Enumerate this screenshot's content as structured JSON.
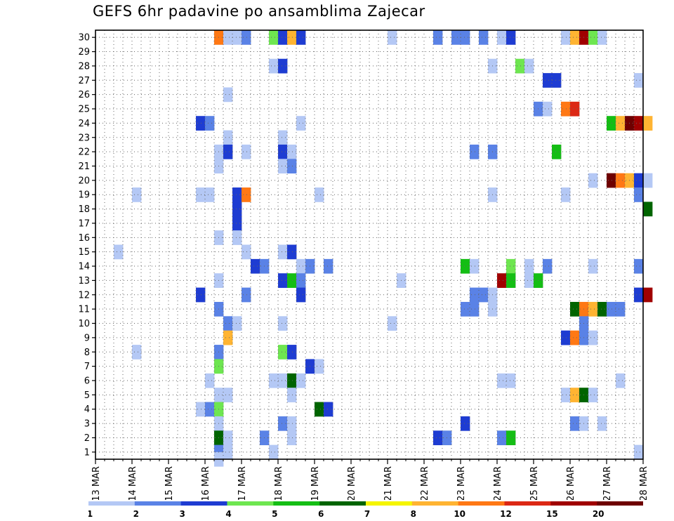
{
  "title": "GEFS 6hr padavine po ansamblima Zajecar",
  "chart_data": {
    "type": "heatmap",
    "title": "GEFS 6hr padavine po ansamblima Zajecar",
    "xlabel": "",
    "ylabel": "",
    "x_tick_labels": [
      "13 MAR",
      "14 MAR",
      "15 MAR",
      "16 MAR",
      "17 MAR",
      "18 MAR",
      "19 MAR",
      "20 MAR",
      "21 MAR",
      "22 MAR",
      "23 MAR",
      "24 MAR",
      "25 MAR",
      "26 MAR",
      "27 MAR",
      "28 MAR"
    ],
    "y_tick_labels": [
      "1",
      "2",
      "3",
      "4",
      "5",
      "6",
      "7",
      "8",
      "9",
      "10",
      "11",
      "12",
      "13",
      "14",
      "15",
      "16",
      "17",
      "18",
      "19",
      "20",
      "21",
      "22",
      "23",
      "24",
      "25",
      "26",
      "27",
      "28",
      "29",
      "30"
    ],
    "x_range_days": [
      13,
      28
    ],
    "y_range": [
      0.5,
      30.5
    ],
    "time_step_hours": 6,
    "grid": "dotted",
    "legend_position": "bottom",
    "colorbar": {
      "labels": [
        "1",
        "2",
        "3",
        "4",
        "5",
        "6",
        "7",
        "8",
        "10",
        "12",
        "15",
        "20"
      ],
      "colors": [
        "#b4c8f5",
        "#5a82e6",
        "#1e3cd2",
        "#6ee650",
        "#14be14",
        "#006400",
        "#f5f500",
        "#ffb432",
        "#ff7814",
        "#dc2814",
        "#a00000",
        "#6e0000"
      ]
    },
    "cells": [
      {
        "x": 16.25,
        "y": 30,
        "c": 10
      },
      {
        "x": 16.5,
        "y": 30,
        "c": 1
      },
      {
        "x": 16.75,
        "y": 30,
        "c": 1
      },
      {
        "x": 17.0,
        "y": 30,
        "c": 2
      },
      {
        "x": 17.75,
        "y": 30,
        "c": 4
      },
      {
        "x": 18.0,
        "y": 30,
        "c": 3
      },
      {
        "x": 18.25,
        "y": 30,
        "c": 8
      },
      {
        "x": 18.5,
        "y": 30,
        "c": 3
      },
      {
        "x": 21.0,
        "y": 30,
        "c": 1
      },
      {
        "x": 22.25,
        "y": 30,
        "c": 2
      },
      {
        "x": 22.75,
        "y": 30,
        "c": 2
      },
      {
        "x": 23.0,
        "y": 30,
        "c": 2
      },
      {
        "x": 23.5,
        "y": 30,
        "c": 2
      },
      {
        "x": 24.0,
        "y": 30,
        "c": 1
      },
      {
        "x": 24.25,
        "y": 30,
        "c": 3
      },
      {
        "x": 25.75,
        "y": 30,
        "c": 1
      },
      {
        "x": 26.0,
        "y": 30,
        "c": 8
      },
      {
        "x": 26.25,
        "y": 30,
        "c": 15
      },
      {
        "x": 26.5,
        "y": 30,
        "c": 4
      },
      {
        "x": 26.75,
        "y": 30,
        "c": 1
      },
      {
        "x": 17.75,
        "y": 28,
        "c": 1
      },
      {
        "x": 18.0,
        "y": 28,
        "c": 3
      },
      {
        "x": 23.75,
        "y": 28,
        "c": 1
      },
      {
        "x": 24.5,
        "y": 28,
        "c": 4
      },
      {
        "x": 24.75,
        "y": 28,
        "c": 1
      },
      {
        "x": 25.25,
        "y": 27,
        "c": 3
      },
      {
        "x": 25.5,
        "y": 27,
        "c": 3
      },
      {
        "x": 27.75,
        "y": 27,
        "c": 1
      },
      {
        "x": 16.5,
        "y": 26,
        "c": 1
      },
      {
        "x": 25.0,
        "y": 25,
        "c": 2
      },
      {
        "x": 25.25,
        "y": 25,
        "c": 1
      },
      {
        "x": 25.75,
        "y": 25,
        "c": 10
      },
      {
        "x": 26.0,
        "y": 25,
        "c": 12
      },
      {
        "x": 15.75,
        "y": 24,
        "c": 3
      },
      {
        "x": 16.0,
        "y": 24,
        "c": 2
      },
      {
        "x": 18.5,
        "y": 24,
        "c": 1
      },
      {
        "x": 27.0,
        "y": 24,
        "c": 5
      },
      {
        "x": 27.25,
        "y": 24,
        "c": 8
      },
      {
        "x": 27.5,
        "y": 24,
        "c": 20
      },
      {
        "x": 27.75,
        "y": 24,
        "c": 15
      },
      {
        "x": 28.0,
        "y": 24,
        "c": 8
      },
      {
        "x": 16.5,
        "y": 23,
        "c": 1
      },
      {
        "x": 18.0,
        "y": 23,
        "c": 1
      },
      {
        "x": 16.25,
        "y": 22,
        "c": 1
      },
      {
        "x": 16.5,
        "y": 22,
        "c": 3
      },
      {
        "x": 17.0,
        "y": 22,
        "c": 1
      },
      {
        "x": 18.0,
        "y": 22,
        "c": 3
      },
      {
        "x": 18.25,
        "y": 22,
        "c": 1
      },
      {
        "x": 23.25,
        "y": 22,
        "c": 2
      },
      {
        "x": 23.75,
        "y": 22,
        "c": 2
      },
      {
        "x": 25.5,
        "y": 22,
        "c": 5
      },
      {
        "x": 16.25,
        "y": 21,
        "c": 1
      },
      {
        "x": 18.0,
        "y": 21,
        "c": 1
      },
      {
        "x": 18.25,
        "y": 21,
        "c": 2
      },
      {
        "x": 26.5,
        "y": 20,
        "c": 1
      },
      {
        "x": 27.0,
        "y": 20,
        "c": 20
      },
      {
        "x": 27.25,
        "y": 20,
        "c": 10
      },
      {
        "x": 27.5,
        "y": 20,
        "c": 8
      },
      {
        "x": 27.75,
        "y": 20,
        "c": 3
      },
      {
        "x": 28.0,
        "y": 20,
        "c": 1
      },
      {
        "x": 14.0,
        "y": 19,
        "c": 1
      },
      {
        "x": 15.75,
        "y": 19,
        "c": 1
      },
      {
        "x": 16.0,
        "y": 19,
        "c": 1
      },
      {
        "x": 16.75,
        "y": 19,
        "c": 3
      },
      {
        "x": 17.0,
        "y": 19,
        "c": 10
      },
      {
        "x": 19.0,
        "y": 19,
        "c": 1
      },
      {
        "x": 23.75,
        "y": 19,
        "c": 1
      },
      {
        "x": 25.75,
        "y": 19,
        "c": 1
      },
      {
        "x": 27.75,
        "y": 19,
        "c": 2
      },
      {
        "x": 16.75,
        "y": 18,
        "c": 3
      },
      {
        "x": 28.0,
        "y": 18,
        "c": 6
      },
      {
        "x": 16.75,
        "y": 17,
        "c": 3
      },
      {
        "x": 16.25,
        "y": 16,
        "c": 1
      },
      {
        "x": 16.75,
        "y": 16,
        "c": 1
      },
      {
        "x": 13.5,
        "y": 15,
        "c": 1
      },
      {
        "x": 17.0,
        "y": 15,
        "c": 1
      },
      {
        "x": 18.0,
        "y": 15,
        "c": 1
      },
      {
        "x": 18.25,
        "y": 15,
        "c": 3
      },
      {
        "x": 17.25,
        "y": 14,
        "c": 3
      },
      {
        "x": 17.5,
        "y": 14,
        "c": 2
      },
      {
        "x": 18.5,
        "y": 14,
        "c": 1
      },
      {
        "x": 18.75,
        "y": 14,
        "c": 2
      },
      {
        "x": 19.25,
        "y": 14,
        "c": 2
      },
      {
        "x": 23.0,
        "y": 14,
        "c": 5
      },
      {
        "x": 23.25,
        "y": 14,
        "c": 1
      },
      {
        "x": 24.25,
        "y": 14,
        "c": 4
      },
      {
        "x": 24.75,
        "y": 14,
        "c": 1
      },
      {
        "x": 25.25,
        "y": 14,
        "c": 2
      },
      {
        "x": 26.5,
        "y": 14,
        "c": 1
      },
      {
        "x": 27.75,
        "y": 14,
        "c": 2
      },
      {
        "x": 16.25,
        "y": 13,
        "c": 1
      },
      {
        "x": 18.0,
        "y": 13,
        "c": 3
      },
      {
        "x": 18.25,
        "y": 13,
        "c": 5
      },
      {
        "x": 18.5,
        "y": 13,
        "c": 2
      },
      {
        "x": 21.25,
        "y": 13,
        "c": 1
      },
      {
        "x": 24.0,
        "y": 13,
        "c": 15
      },
      {
        "x": 24.25,
        "y": 13,
        "c": 5
      },
      {
        "x": 24.75,
        "y": 13,
        "c": 1
      },
      {
        "x": 25.0,
        "y": 13,
        "c": 5
      },
      {
        "x": 15.75,
        "y": 12,
        "c": 3
      },
      {
        "x": 17.0,
        "y": 12,
        "c": 2
      },
      {
        "x": 18.5,
        "y": 12,
        "c": 3
      },
      {
        "x": 23.25,
        "y": 12,
        "c": 2
      },
      {
        "x": 23.5,
        "y": 12,
        "c": 2
      },
      {
        "x": 23.75,
        "y": 12,
        "c": 1
      },
      {
        "x": 27.75,
        "y": 12,
        "c": 3
      },
      {
        "x": 28.0,
        "y": 12,
        "c": 15
      },
      {
        "x": 16.25,
        "y": 11,
        "c": 2
      },
      {
        "x": 23.0,
        "y": 11,
        "c": 2
      },
      {
        "x": 23.25,
        "y": 11,
        "c": 2
      },
      {
        "x": 23.75,
        "y": 11,
        "c": 1
      },
      {
        "x": 26.0,
        "y": 11,
        "c": 6
      },
      {
        "x": 26.25,
        "y": 11,
        "c": 10
      },
      {
        "x": 26.5,
        "y": 11,
        "c": 8
      },
      {
        "x": 26.75,
        "y": 11,
        "c": 6
      },
      {
        "x": 27.0,
        "y": 11,
        "c": 2
      },
      {
        "x": 27.25,
        "y": 11,
        "c": 2
      },
      {
        "x": 16.5,
        "y": 10,
        "c": 2
      },
      {
        "x": 16.75,
        "y": 10,
        "c": 1
      },
      {
        "x": 18.0,
        "y": 10,
        "c": 1
      },
      {
        "x": 21.0,
        "y": 10,
        "c": 1
      },
      {
        "x": 26.25,
        "y": 10,
        "c": 2
      },
      {
        "x": 16.5,
        "y": 9,
        "c": 8
      },
      {
        "x": 25.75,
        "y": 9,
        "c": 3
      },
      {
        "x": 26.0,
        "y": 9,
        "c": 10
      },
      {
        "x": 26.25,
        "y": 9,
        "c": 2
      },
      {
        "x": 26.5,
        "y": 9,
        "c": 1
      },
      {
        "x": 14.0,
        "y": 8,
        "c": 1
      },
      {
        "x": 16.25,
        "y": 8,
        "c": 2
      },
      {
        "x": 18.0,
        "y": 8,
        "c": 4
      },
      {
        "x": 18.25,
        "y": 8,
        "c": 3
      },
      {
        "x": 16.25,
        "y": 7,
        "c": 4
      },
      {
        "x": 18.75,
        "y": 7,
        "c": 3
      },
      {
        "x": 19.0,
        "y": 7,
        "c": 1
      },
      {
        "x": 16.0,
        "y": 6,
        "c": 1
      },
      {
        "x": 17.75,
        "y": 6,
        "c": 1
      },
      {
        "x": 18.0,
        "y": 6,
        "c": 1
      },
      {
        "x": 18.25,
        "y": 6,
        "c": 6
      },
      {
        "x": 18.5,
        "y": 6,
        "c": 1
      },
      {
        "x": 24.0,
        "y": 6,
        "c": 1
      },
      {
        "x": 24.25,
        "y": 6,
        "c": 1
      },
      {
        "x": 27.25,
        "y": 6,
        "c": 1
      },
      {
        "x": 16.25,
        "y": 5,
        "c": 1
      },
      {
        "x": 16.5,
        "y": 5,
        "c": 1
      },
      {
        "x": 18.25,
        "y": 5,
        "c": 1
      },
      {
        "x": 25.75,
        "y": 5,
        "c": 1
      },
      {
        "x": 26.0,
        "y": 5,
        "c": 8
      },
      {
        "x": 26.25,
        "y": 5,
        "c": 6
      },
      {
        "x": 26.5,
        "y": 5,
        "c": 1
      },
      {
        "x": 15.75,
        "y": 4,
        "c": 1
      },
      {
        "x": 16.0,
        "y": 4,
        "c": 2
      },
      {
        "x": 16.25,
        "y": 4,
        "c": 4
      },
      {
        "x": 19.0,
        "y": 4,
        "c": 6
      },
      {
        "x": 19.25,
        "y": 4,
        "c": 3
      },
      {
        "x": 16.25,
        "y": 3,
        "c": 1
      },
      {
        "x": 18.0,
        "y": 3,
        "c": 2
      },
      {
        "x": 18.25,
        "y": 3,
        "c": 1
      },
      {
        "x": 23.0,
        "y": 3,
        "c": 3
      },
      {
        "x": 26.0,
        "y": 3,
        "c": 2
      },
      {
        "x": 26.25,
        "y": 3,
        "c": 1
      },
      {
        "x": 26.75,
        "y": 3,
        "c": 1
      },
      {
        "x": 16.25,
        "y": 2,
        "c": 6
      },
      {
        "x": 16.5,
        "y": 2,
        "c": 1
      },
      {
        "x": 17.5,
        "y": 2,
        "c": 2
      },
      {
        "x": 18.25,
        "y": 2,
        "c": 1
      },
      {
        "x": 22.25,
        "y": 2,
        "c": 3
      },
      {
        "x": 22.5,
        "y": 2,
        "c": 2
      },
      {
        "x": 24.0,
        "y": 2,
        "c": 2
      },
      {
        "x": 24.25,
        "y": 2,
        "c": 5
      },
      {
        "x": 16.25,
        "y": 1,
        "c": 2
      },
      {
        "x": 16.5,
        "y": 1,
        "c": 1
      },
      {
        "x": 17.75,
        "y": 1,
        "c": 1
      },
      {
        "x": 27.75,
        "y": 1,
        "c": 1
      },
      {
        "x": 16.25,
        "y": 0.5,
        "c": 1
      }
    ]
  }
}
